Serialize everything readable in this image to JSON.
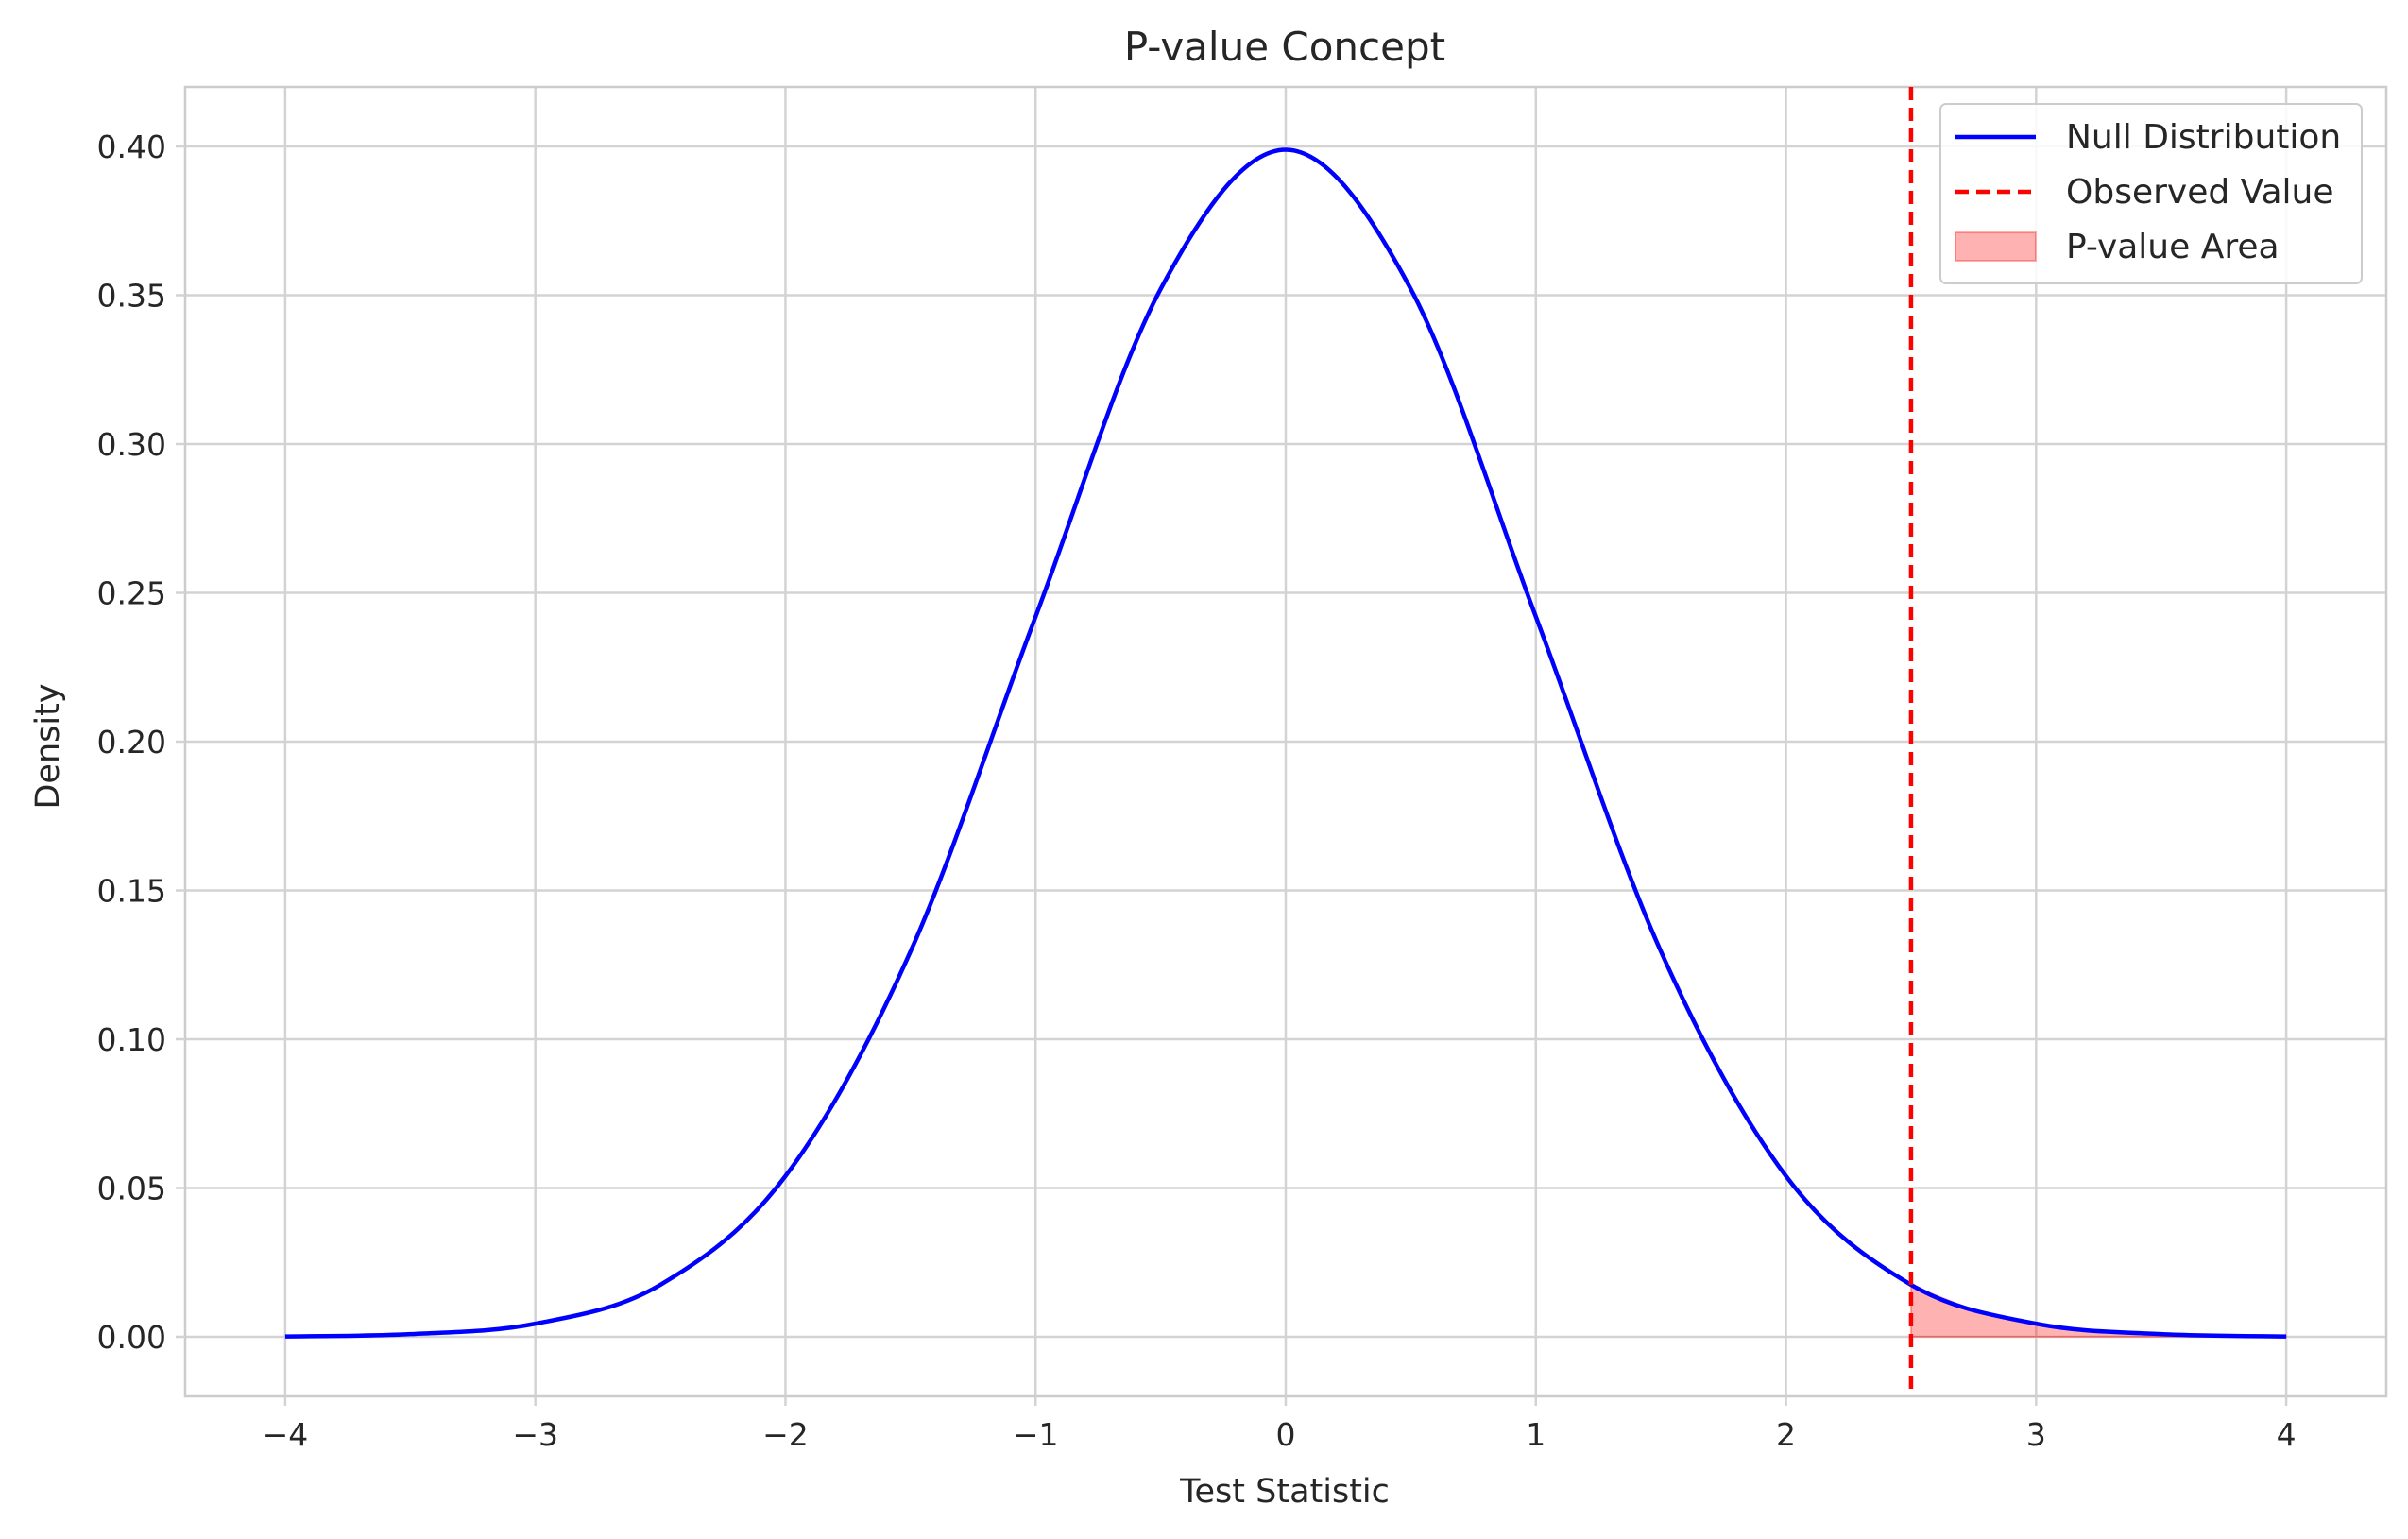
{
  "chart_data": {
    "type": "line",
    "title": "P-value Concept",
    "xlabel": "Test Statistic",
    "ylabel": "Density",
    "xlim": [
      -4.4,
      4.4
    ],
    "ylim": [
      -0.02,
      0.42
    ],
    "x_ticks": [
      -4,
      -3,
      -2,
      -1,
      0,
      1,
      2,
      3,
      4
    ],
    "x_tick_labels": [
      "−4",
      "−3",
      "−2",
      "−1",
      "0",
      "1",
      "2",
      "3",
      "4"
    ],
    "y_ticks": [
      0.0,
      0.05,
      0.1,
      0.15,
      0.2,
      0.25,
      0.3,
      0.35,
      0.4
    ],
    "y_tick_labels": [
      "0.00",
      "0.05",
      "0.10",
      "0.15",
      "0.20",
      "0.25",
      "0.30",
      "0.35",
      "0.40"
    ],
    "grid": true,
    "legend_position": "top-right",
    "series": [
      {
        "name": "Null Distribution",
        "kind": "line",
        "color": "#0000ff",
        "x": [
          -4.0,
          -3.5,
          -3.0,
          -2.5,
          -2.0,
          -1.5,
          -1.0,
          -0.5,
          0.0,
          0.5,
          1.0,
          1.5,
          2.0,
          2.5,
          3.0,
          3.5,
          4.0
        ],
        "y": [
          0.0001,
          0.0009,
          0.0044,
          0.0175,
          0.054,
          0.1295,
          0.242,
          0.3521,
          0.3989,
          0.3521,
          0.242,
          0.1295,
          0.054,
          0.0175,
          0.0044,
          0.0009,
          0.0001
        ]
      },
      {
        "name": "Observed Value",
        "kind": "vline",
        "color": "#ff0000",
        "style": "dashed",
        "x": 2.5
      },
      {
        "name": "P-value Area",
        "kind": "area",
        "color": "#ff0000",
        "x": [
          2.5,
          2.75,
          3.0,
          3.25,
          3.5,
          3.75,
          4.0
        ],
        "y": [
          0.0175,
          0.0091,
          0.0044,
          0.002,
          0.0009,
          0.0004,
          0.0001
        ]
      }
    ]
  }
}
